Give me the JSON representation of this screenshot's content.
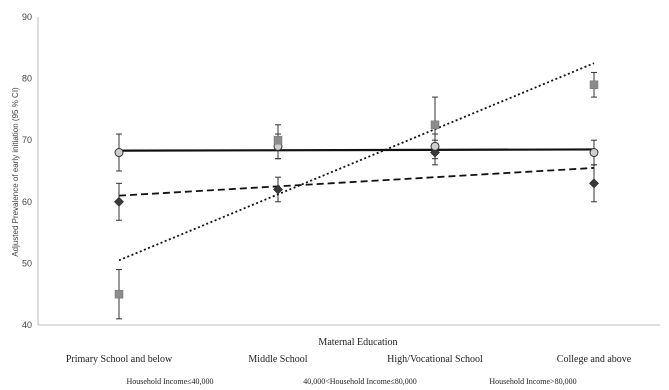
{
  "chart_data": {
    "type": "line",
    "title": "",
    "xlabel": "Maternal Education",
    "ylabel": "Adjusted Prevalence of early initiation (95 % CI)",
    "categories": [
      "Primary School and below",
      "Middle School",
      "High/Vocational School",
      "College and above"
    ],
    "ylim": [
      40,
      90
    ],
    "yticks": [
      40,
      50,
      60,
      70,
      80,
      90
    ],
    "grid": false,
    "legend_position": "bottom",
    "series": [
      {
        "name": "Household Income≤40,000",
        "marker": "diamond",
        "color": "#3a3a3a",
        "values": [
          60,
          62,
          68,
          63
        ],
        "ci_low": [
          57,
          60,
          66,
          60
        ],
        "ci_high": [
          63,
          64,
          70,
          66
        ],
        "trend": {
          "style": "dashed",
          "start": 61,
          "end": 65.5
        }
      },
      {
        "name": "40,000<Household Income≤80,000",
        "marker": "circle",
        "color": "#9a9a9a",
        "values": [
          68,
          69,
          69,
          68
        ],
        "ci_low": [
          65,
          67,
          67,
          66
        ],
        "ci_high": [
          71,
          71,
          71,
          70
        ],
        "trend": {
          "style": "solid",
          "start": 68.3,
          "end": 68.5
        }
      },
      {
        "name": "Household Income>80,000",
        "marker": "square",
        "color": "#8c8c8c",
        "values": [
          45,
          70,
          72.5,
          79
        ],
        "ci_low": [
          41,
          67,
          68,
          77
        ],
        "ci_high": [
          49,
          72.5,
          77,
          81
        ],
        "trend": {
          "style": "dotted",
          "start": 50.5,
          "end": 82.5
        }
      }
    ]
  }
}
